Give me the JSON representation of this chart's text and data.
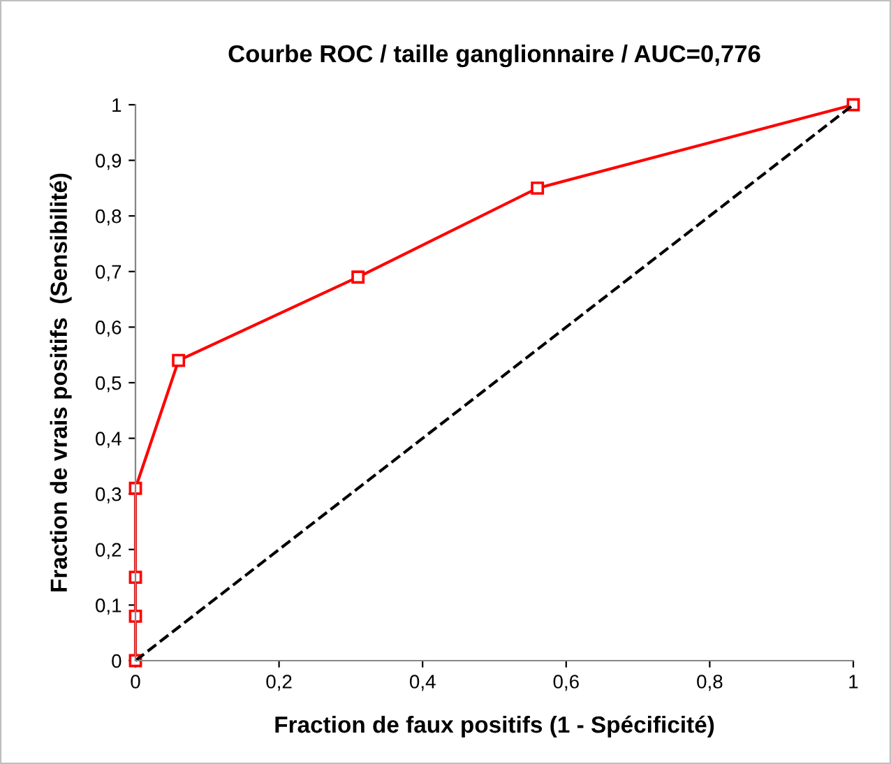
{
  "chart_data": {
    "type": "line",
    "title": "Courbe ROC / taille ganglionnaire / AUC=0,776",
    "xlabel": "Fraction de faux positifs (1 - Spécificité)",
    "ylabel": "Fraction de vrais positifs  (Sensibilité)",
    "series": [
      {
        "x": [
          0,
          0,
          0,
          0,
          0.06,
          0.31,
          0.56,
          1
        ],
        "values": [
          0,
          0.08,
          0.15,
          0.31,
          0.54,
          0.69,
          0.85,
          1
        ],
        "color": "#ff0000",
        "marker": "square",
        "line_style": "solid"
      },
      {
        "x": [
          0,
          1
        ],
        "values": [
          0,
          1
        ],
        "color": "#000000",
        "marker": "none",
        "line_style": "dashed"
      }
    ],
    "xlim": [
      0,
      1
    ],
    "ylim": [
      0,
      1
    ],
    "xticks": [
      0,
      {
        "value": 0.2,
        "label": "0,2"
      },
      {
        "value": 0.4,
        "label": "0,4"
      },
      {
        "value": 0.6,
        "label": "0,6"
      },
      {
        "value": 0.8,
        "label": "0,8"
      },
      1
    ],
    "yticks": [
      0,
      {
        "value": 0.1,
        "label": "0,1"
      },
      {
        "value": 0.2,
        "label": "0,2"
      },
      {
        "value": 0.3,
        "label": "0,3"
      },
      {
        "value": 0.4,
        "label": "0,4"
      },
      {
        "value": 0.5,
        "label": "0,5"
      },
      {
        "value": 0.6,
        "label": "0,6"
      },
      {
        "value": 0.7,
        "label": "0,7"
      },
      {
        "value": 0.8,
        "label": "0,8"
      },
      {
        "value": 0.9,
        "label": "0,9"
      },
      1
    ],
    "grid": false,
    "legend": false
  }
}
